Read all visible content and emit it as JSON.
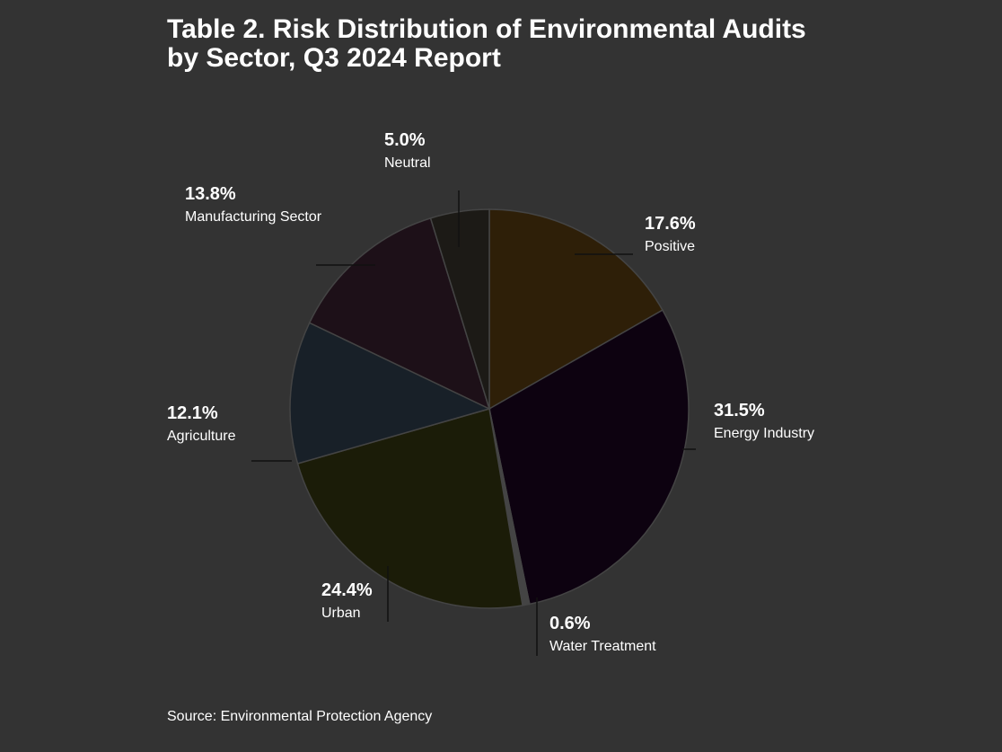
{
  "chart_data": {
    "type": "pie",
    "title_lines": [
      "Table 2. Risk Distribution of Environmental Audits",
      "by Sector, Q3 2024 Report"
    ],
    "slices": [
      {
        "label": "Positive",
        "percent": 17.6,
        "color": "#2e1f08"
      },
      {
        "label": "Energy Industry",
        "percent": 31.5,
        "color": "#0d0210"
      },
      {
        "label": "Water Treatment",
        "percent": 0.6,
        "color": "#444444"
      },
      {
        "label": "Urban",
        "percent": 24.4,
        "color": "#1b1c08"
      },
      {
        "label": "Agriculture",
        "percent": 12.1,
        "color": "#182028"
      },
      {
        "label": "Manufacturing Sector",
        "percent": 13.8,
        "color": "#1d1018"
      },
      {
        "label": "Neutral",
        "percent": 5.0,
        "color": "#1c1a16"
      }
    ],
    "source": "Source: Environmental Protection Agency"
  }
}
